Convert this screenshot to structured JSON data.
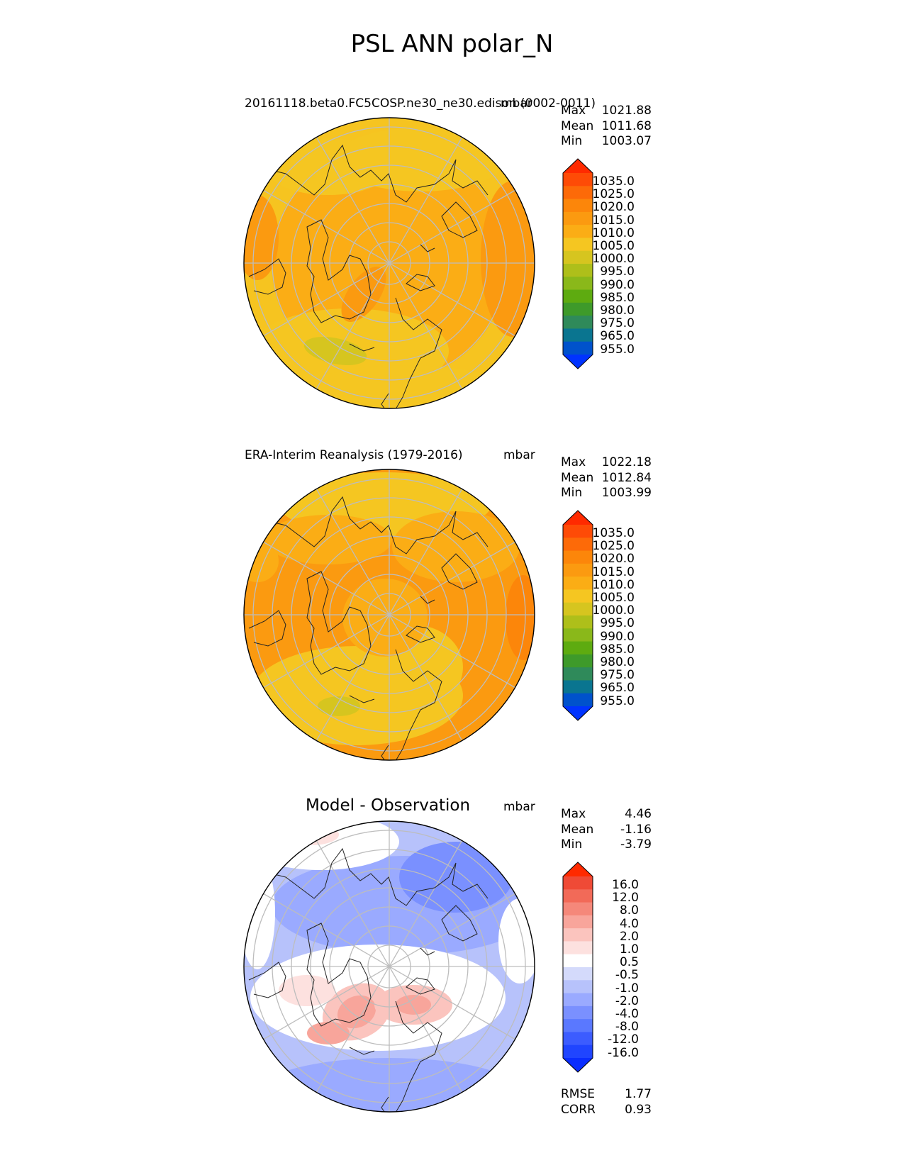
{
  "figure_title": "PSL ANN polar_N",
  "colors": {
    "abs_levels": [
      "#0033ff",
      "#0052cc",
      "#0a7590",
      "#2f8a5a",
      "#3e9a2a",
      "#5eab10",
      "#8ab81a",
      "#aebf1a",
      "#d6c51f",
      "#f5c621",
      "#fbad15",
      "#fb9a10",
      "#fc860a",
      "#fd6a08",
      "#fe4b06",
      "#ff2a00"
    ],
    "diff_levels": [
      "#0a2dff",
      "#2045ff",
      "#3c5cff",
      "#5a78ff",
      "#7a90ff",
      "#9aaaff",
      "#b7c2fb",
      "#d4dafb",
      "#ffffff",
      "#fde1df",
      "#fbc4be",
      "#f8a59b",
      "#f5887a",
      "#f26a58",
      "#ef4a36",
      "#ff2a00"
    ]
  },
  "panels": [
    {
      "id": "model",
      "title": "20161118.beta0.FC5COSP.ne30_ne30.edison (0002-0011)",
      "units": "mbar",
      "stats": [
        {
          "label": "Max",
          "value": "1021.88"
        },
        {
          "label": "Mean",
          "value": "1011.68"
        },
        {
          "label": "Min",
          "value": "1003.07"
        }
      ],
      "colorbar_ticks": [
        "1035.0",
        "1025.0",
        "1020.0",
        "1015.0",
        "1010.0",
        "1005.0",
        "1000.0",
        "995.0",
        "990.0",
        "985.0",
        "980.0",
        "975.0",
        "965.0",
        "955.0"
      ]
    },
    {
      "id": "obs",
      "title": "ERA-Interim Reanalysis (1979-2016)",
      "units": "mbar",
      "stats": [
        {
          "label": "Max",
          "value": "1022.18"
        },
        {
          "label": "Mean",
          "value": "1012.84"
        },
        {
          "label": "Min",
          "value": "1003.99"
        }
      ],
      "colorbar_ticks": [
        "1035.0",
        "1025.0",
        "1020.0",
        "1015.0",
        "1010.0",
        "1005.0",
        "1000.0",
        "995.0",
        "990.0",
        "985.0",
        "980.0",
        "975.0",
        "965.0",
        "955.0"
      ]
    },
    {
      "id": "diff",
      "title": "Model - Observation",
      "units": "mbar",
      "stats": [
        {
          "label": "Max",
          "value": "4.46"
        },
        {
          "label": "Mean",
          "value": "-1.16"
        },
        {
          "label": "Min",
          "value": "-3.79"
        }
      ],
      "colorbar_ticks": [
        "16.0",
        "12.0",
        "8.0",
        "4.0",
        "2.0",
        "1.0",
        "0.5",
        "-0.5",
        "-1.0",
        "-2.0",
        "-4.0",
        "-8.0",
        "-12.0",
        "-16.0"
      ],
      "metrics": [
        {
          "label": "RMSE",
          "value": "1.77"
        },
        {
          "label": "CORR",
          "value": "0.93"
        }
      ]
    }
  ]
}
